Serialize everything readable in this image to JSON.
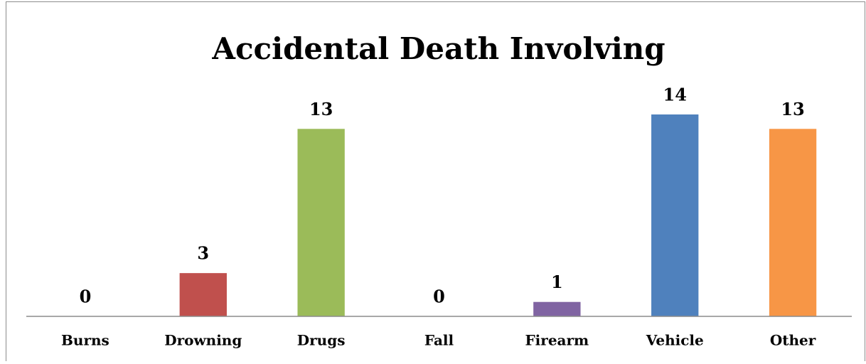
{
  "chart_data": {
    "type": "bar",
    "title": "Accidental Death Involving",
    "categories": [
      "Burns",
      "Drowning",
      "Drugs",
      "Fall",
      "Firearm",
      "Vehicle",
      "Other"
    ],
    "values": [
      0,
      3,
      13,
      0,
      1,
      14,
      13
    ],
    "colors": [
      "#4f81bd",
      "#c0504d",
      "#9bbb59",
      "#8064a2",
      "#8064a2",
      "#4f81bd",
      "#f79646"
    ],
    "ylim": [
      0,
      14
    ]
  }
}
